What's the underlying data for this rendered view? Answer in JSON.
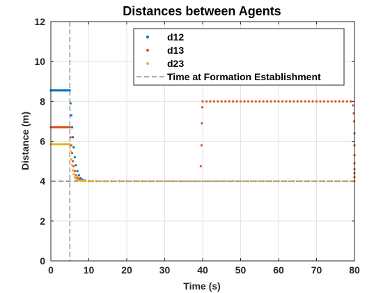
{
  "chart_data": {
    "type": "scatter",
    "title": "Distances between Agents",
    "xlabel": "Time (s)",
    "ylabel": "Distance (m)",
    "xlim": [
      0,
      80
    ],
    "ylim": [
      0,
      12
    ],
    "xticks": [
      0,
      10,
      20,
      30,
      40,
      50,
      60,
      70,
      80
    ],
    "yticks": [
      0,
      2,
      4,
      6,
      8,
      10,
      12
    ],
    "grid": true,
    "legend_position": "top-right",
    "vline": {
      "x": 5,
      "name": "Time at Formation Establishment",
      "color": "#5a5a5a",
      "style": "dashed"
    },
    "series": [
      {
        "name": "d12",
        "color": "#0072BD",
        "x": [
          0,
          0.4,
          0.8,
          1.2,
          1.6,
          2,
          2.4,
          2.8,
          3.2,
          3.6,
          4,
          4.4,
          4.8,
          5,
          5.2,
          5.4,
          5.6,
          5.8,
          6,
          6.3,
          6.6,
          7,
          7.4,
          7.8,
          8.3,
          9,
          10,
          11,
          12,
          14,
          16,
          18,
          20,
          22,
          24,
          26,
          28,
          30,
          32,
          34,
          36,
          38,
          40,
          42,
          44,
          46,
          48,
          50,
          52,
          54,
          56,
          58,
          60,
          62,
          64,
          66,
          68,
          70,
          72,
          74,
          76,
          78,
          80
        ],
        "y": [
          8.55,
          8.55,
          8.55,
          8.55,
          8.55,
          8.55,
          8.55,
          8.55,
          8.55,
          8.55,
          8.55,
          8.55,
          8.55,
          8.55,
          7.9,
          7.3,
          6.7,
          6.2,
          5.7,
          5.2,
          4.8,
          4.5,
          4.3,
          4.15,
          4.08,
          4.03,
          4.01,
          4,
          4,
          4,
          4,
          4,
          4,
          4,
          4,
          4,
          4,
          4,
          4,
          4,
          4,
          4,
          4,
          4,
          4,
          4,
          4,
          4,
          4,
          4,
          4,
          4,
          4,
          4,
          4,
          4,
          4,
          4,
          4,
          4,
          4,
          4,
          4
        ]
      },
      {
        "name": "d13",
        "color": "#D95319",
        "x": [
          0,
          0.4,
          0.8,
          1.2,
          1.6,
          2,
          2.4,
          2.8,
          3.2,
          3.6,
          4,
          4.4,
          4.8,
          5,
          5.2,
          5.4,
          5.6,
          5.8,
          6,
          6.3,
          6.6,
          7,
          7.4,
          7.8,
          8.3,
          9,
          10,
          11,
          12,
          14,
          16,
          18,
          20,
          22,
          24,
          26,
          28,
          30,
          32,
          34,
          36,
          38,
          39.5,
          39.7,
          39.8,
          39.9,
          40,
          41,
          42,
          43,
          44,
          45,
          46,
          47,
          48,
          49,
          50,
          51,
          52,
          53,
          54,
          55,
          56,
          57,
          58,
          59,
          60,
          61,
          62,
          63,
          64,
          65,
          66,
          67,
          68,
          69,
          70,
          71,
          72,
          73,
          74,
          75,
          76,
          77,
          78,
          79,
          79.6,
          79.8,
          79.9,
          80,
          80,
          80,
          80,
          80,
          80,
          80
        ],
        "y": [
          6.7,
          6.7,
          6.7,
          6.7,
          6.7,
          6.7,
          6.7,
          6.7,
          6.7,
          6.7,
          6.7,
          6.7,
          6.7,
          6.7,
          6.2,
          5.8,
          5.4,
          5.0,
          4.75,
          4.5,
          4.3,
          4.18,
          4.1,
          4.05,
          4.02,
          4.01,
          4,
          4,
          4,
          4,
          4,
          4,
          4,
          4,
          4,
          4,
          4,
          4,
          4,
          4,
          4,
          4,
          4.75,
          5.8,
          6.9,
          7.7,
          8,
          8,
          8,
          8,
          8,
          8,
          8,
          8,
          8,
          8,
          8,
          8,
          8,
          8,
          8,
          8,
          8,
          8,
          8,
          8,
          8,
          8,
          8,
          8,
          8,
          8,
          8,
          8,
          8,
          8,
          8,
          8,
          8,
          8,
          8,
          8,
          8,
          8,
          8,
          8,
          7.8,
          7.4,
          7,
          6.4,
          5.8,
          5.3,
          4.9,
          4.6,
          4.4,
          4.2
        ]
      },
      {
        "name": "d23",
        "color": "#EDB120",
        "x": [
          0,
          0.4,
          0.8,
          1.2,
          1.6,
          2,
          2.4,
          2.8,
          3.2,
          3.6,
          4,
          4.4,
          4.8,
          5,
          5.2,
          5.4,
          5.6,
          5.8,
          6,
          6.3,
          6.6,
          7,
          7.4,
          7.8,
          8.3,
          9,
          10,
          11,
          12,
          14,
          16,
          18,
          20,
          22,
          24,
          26,
          28,
          30,
          32,
          34,
          36,
          38,
          40,
          42,
          44,
          46,
          48,
          50,
          52,
          54,
          56,
          58,
          60,
          62,
          64,
          66,
          68,
          70,
          72,
          74,
          76,
          78,
          80
        ],
        "y": [
          5.85,
          5.85,
          5.85,
          5.85,
          5.85,
          5.85,
          5.85,
          5.85,
          5.85,
          5.85,
          5.85,
          5.85,
          5.85,
          5.85,
          5.5,
          5.1,
          4.8,
          4.55,
          4.35,
          4.2,
          4.12,
          4.06,
          4.03,
          4.02,
          4.01,
          4,
          4,
          4,
          4,
          4,
          4,
          4,
          4,
          4,
          4,
          4,
          4,
          4,
          4,
          4,
          4,
          4,
          4,
          4,
          4,
          4,
          4,
          4,
          4,
          4,
          4,
          4,
          4,
          4,
          4,
          4,
          4,
          4,
          4,
          4,
          4,
          4,
          4
        ]
      }
    ],
    "hline_approx": 4
  }
}
